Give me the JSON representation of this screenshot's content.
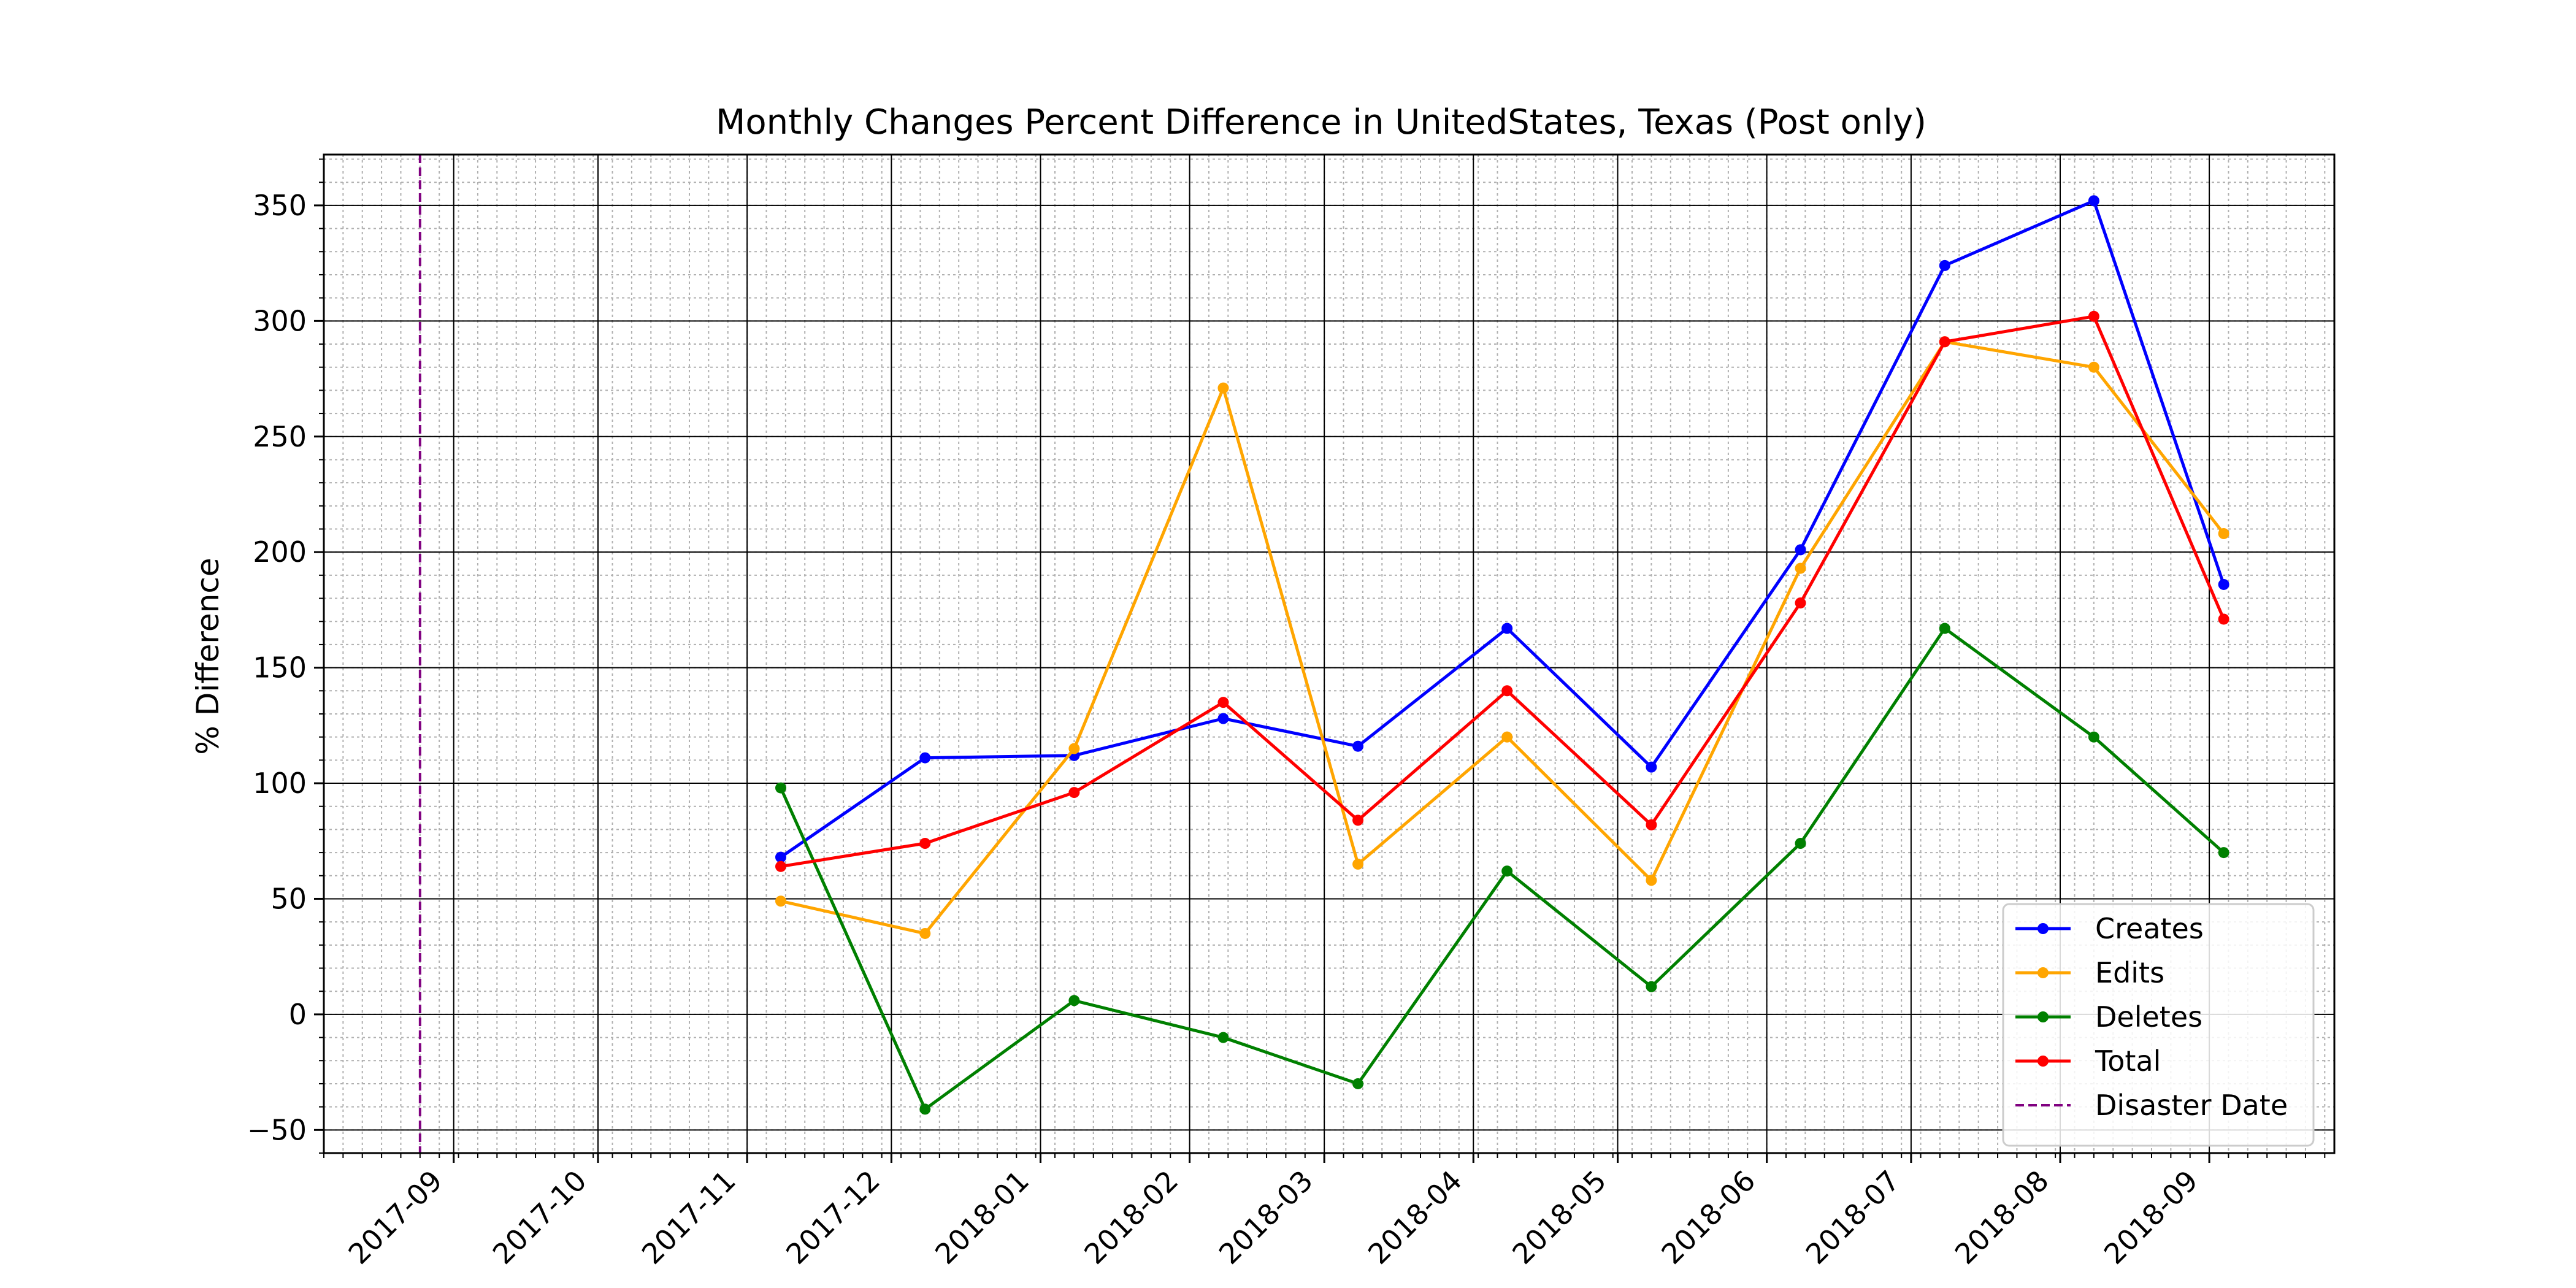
{
  "chart_data": {
    "type": "line",
    "title": "Monthly Changes Percent Difference in UnitedStates, Texas (Post only)",
    "xlabel": "",
    "ylabel": "% Difference",
    "x_axis": {
      "kind": "date",
      "range": [
        "2017-08-05",
        "2018-09-27"
      ],
      "tick_labels": [
        "2017-09",
        "2017-10",
        "2017-11",
        "2017-12",
        "2018-01",
        "2018-02",
        "2018-03",
        "2018-04",
        "2018-05",
        "2018-06",
        "2018-07",
        "2018-08",
        "2018-09"
      ],
      "tick_dates": [
        "2017-09-01",
        "2017-10-01",
        "2017-11-01",
        "2017-12-01",
        "2018-01-01",
        "2018-02-01",
        "2018-03-01",
        "2018-04-01",
        "2018-05-01",
        "2018-06-01",
        "2018-07-01",
        "2018-08-01",
        "2018-09-01"
      ]
    },
    "y_axis": {
      "range": [
        -60,
        372
      ],
      "ticks": [
        -50,
        0,
        50,
        100,
        150,
        200,
        250,
        300,
        350
      ],
      "tick_labels": [
        "−50",
        "0",
        "50",
        "100",
        "150",
        "200",
        "250",
        "300",
        "350"
      ]
    },
    "grid": true,
    "minor_grid": true,
    "legend_position": "lower-right",
    "x": [
      "2017-11-08",
      "2017-12-08",
      "2018-01-08",
      "2018-02-08",
      "2018-03-08",
      "2018-04-08",
      "2018-05-08",
      "2018-06-08",
      "2018-07-08",
      "2018-08-08",
      "2018-09-04"
    ],
    "series": [
      {
        "name": "Creates",
        "color": "#0000ff",
        "values": [
          68,
          111,
          112,
          128,
          116,
          167,
          107,
          201,
          324,
          352,
          186
        ]
      },
      {
        "name": "Edits",
        "color": "#ffa500",
        "values": [
          49,
          35,
          115,
          271,
          65,
          120,
          58,
          193,
          291,
          280,
          208
        ]
      },
      {
        "name": "Deletes",
        "color": "#008000",
        "values": [
          98,
          -41,
          6,
          -10,
          -30,
          62,
          12,
          74,
          167,
          120,
          70
        ]
      },
      {
        "name": "Total",
        "color": "#ff0000",
        "values": [
          64,
          74,
          96,
          135,
          84,
          140,
          82,
          178,
          291,
          302,
          171
        ]
      }
    ],
    "annotations": [
      {
        "type": "vline",
        "name": "Disaster Date",
        "x": "2017-08-25",
        "color": "#800080",
        "style": "dashed"
      }
    ]
  }
}
